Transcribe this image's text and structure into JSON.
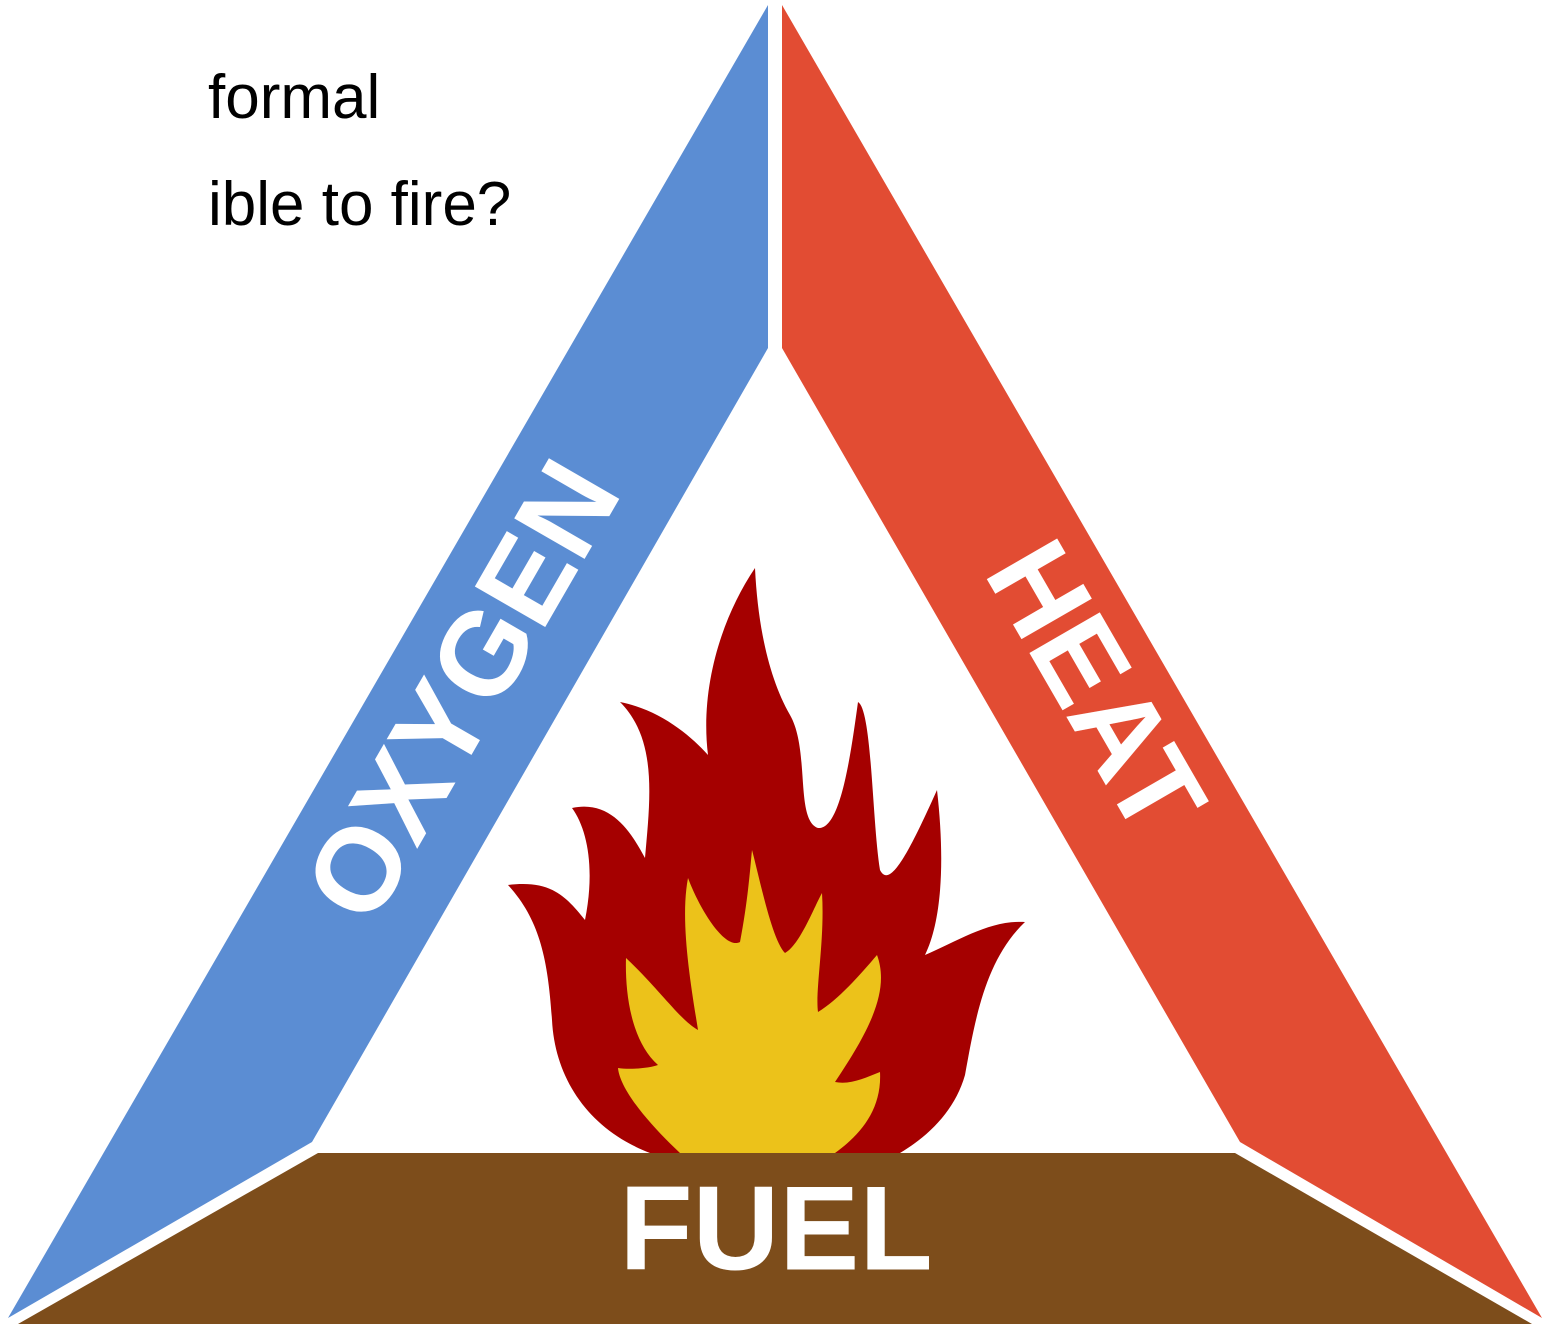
{
  "text_lines": [
    "formal",
    "ible to fire?"
  ],
  "labels": {
    "oxygen": "OXYGEN",
    "heat": "HEAT",
    "fuel": "FUEL"
  }
}
